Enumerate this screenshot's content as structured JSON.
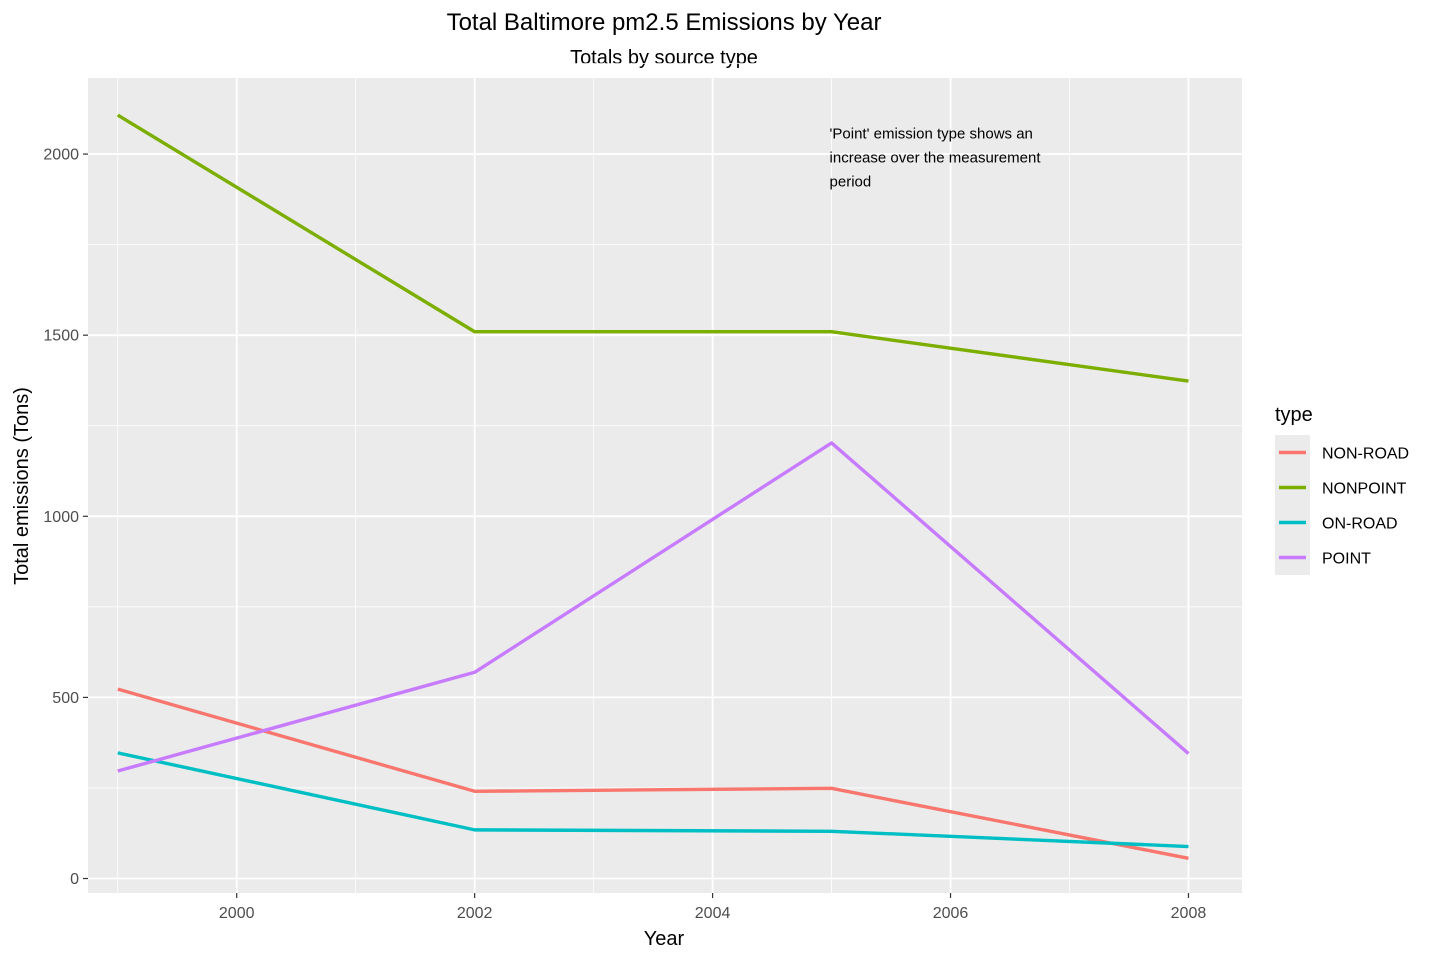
{
  "chart_data": {
    "type": "line",
    "title": "Total Baltimore pm2.5 Emissions by Year",
    "subtitle": "Totals by source type",
    "xlabel": "Year",
    "ylabel": "Total emissions (Tons)",
    "x": [
      1999,
      2002,
      2005,
      2008
    ],
    "xlim": [
      1998.75,
      2008.45
    ],
    "ylim": [
      -40,
      2210
    ],
    "x_ticks": [
      "2000",
      "2002",
      "2004",
      "2006",
      "2008"
    ],
    "y_ticks": [
      "0",
      "500",
      "1000",
      "1500",
      "2000"
    ],
    "grid": true,
    "legend_title": "type",
    "legend_position": "right",
    "series": [
      {
        "name": "NON-ROAD",
        "color": "#F8766D",
        "values": [
          522.9,
          240.8,
          248.9,
          55.8
        ]
      },
      {
        "name": "NONPOINT",
        "color": "#7CAE00",
        "values": [
          2107.6,
          1509.5,
          1509.5,
          1373.2
        ]
      },
      {
        "name": "ON-ROAD",
        "color": "#00BFC4",
        "values": [
          346.8,
          134.3,
          130.4,
          88.3
        ]
      },
      {
        "name": "POINT",
        "color": "#C77CFF",
        "values": [
          296.8,
          569.3,
          1202.5,
          344.98
        ]
      }
    ],
    "annotation": {
      "lines": [
        "'Point' emission type shows an",
        "increase over the measurement",
        "period"
      ],
      "x": 2005,
      "y": 2060
    }
  }
}
